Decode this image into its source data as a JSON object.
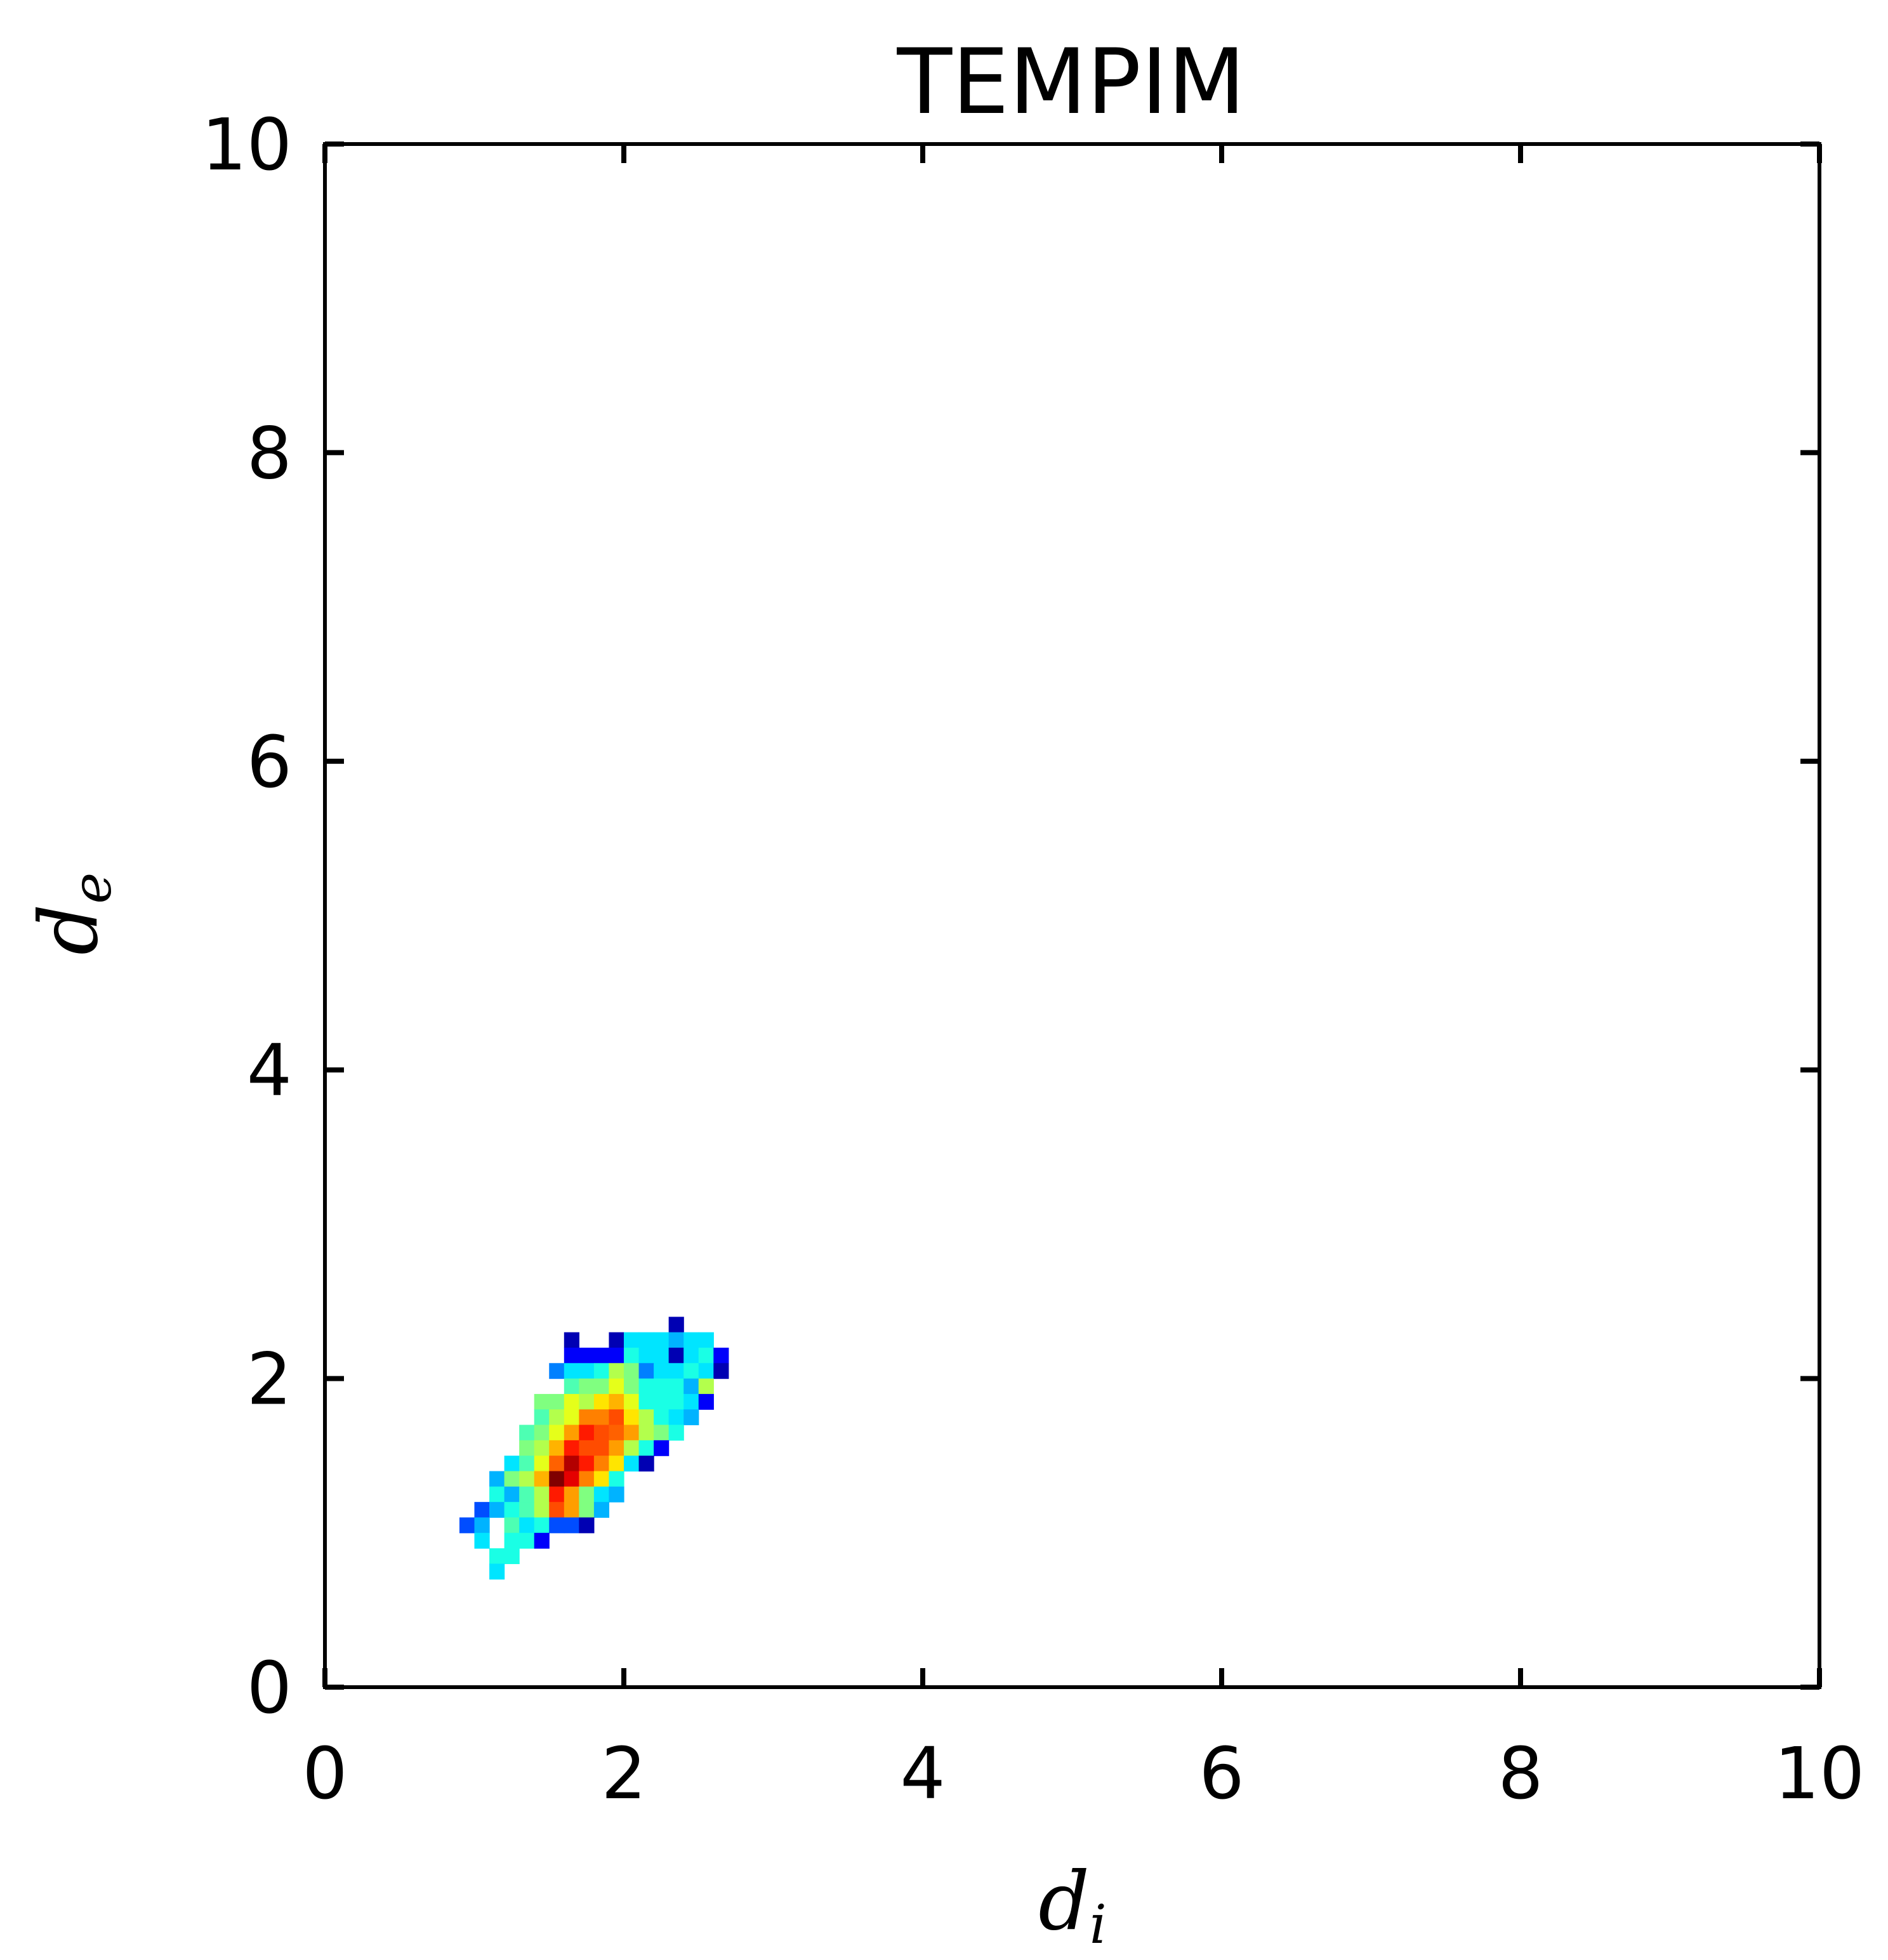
{
  "chart_data": {
    "type": "heatmap",
    "title": "TEMPIM",
    "xlabel": "d",
    "xlabel_sub": "i",
    "ylabel": "d",
    "ylabel_sub": "e",
    "xlim": [
      0,
      10
    ],
    "ylim": [
      0,
      10
    ],
    "xticks": [
      "0",
      "2",
      "4",
      "6",
      "8",
      "10"
    ],
    "yticks": [
      "0",
      "2",
      "4",
      "6",
      "8",
      "10"
    ],
    "xtick_values": [
      0,
      2,
      4,
      6,
      8,
      10
    ],
    "ytick_values": [
      0,
      2,
      4,
      6,
      8,
      10
    ],
    "grid": false,
    "legend": "none",
    "colormap": "jet",
    "bin_width": 0.1,
    "bin_height": 0.1,
    "cells": [
      [
        2.3,
        2.3,
        0.05
      ],
      [
        1.6,
        2.2,
        0.05
      ],
      [
        1.9,
        2.2,
        0.05
      ],
      [
        2.0,
        2.2,
        0.35
      ],
      [
        2.1,
        2.2,
        0.35
      ],
      [
        2.2,
        2.2,
        0.35
      ],
      [
        2.3,
        2.2,
        0.3
      ],
      [
        2.4,
        2.2,
        0.35
      ],
      [
        2.5,
        2.2,
        0.35
      ],
      [
        1.6,
        2.1,
        0.12
      ],
      [
        1.7,
        2.1,
        0.12
      ],
      [
        1.8,
        2.1,
        0.12
      ],
      [
        1.9,
        2.1,
        0.12
      ],
      [
        2.0,
        2.1,
        0.4
      ],
      [
        2.1,
        2.1,
        0.35
      ],
      [
        2.2,
        2.1,
        0.35
      ],
      [
        2.3,
        2.1,
        0.05
      ],
      [
        2.4,
        2.1,
        0.35
      ],
      [
        2.5,
        2.1,
        0.4
      ],
      [
        2.6,
        2.1,
        0.12
      ],
      [
        1.5,
        2.0,
        0.25
      ],
      [
        1.6,
        2.0,
        0.35
      ],
      [
        1.7,
        2.0,
        0.35
      ],
      [
        1.8,
        2.0,
        0.4
      ],
      [
        1.9,
        2.0,
        0.55
      ],
      [
        2.0,
        2.0,
        0.5
      ],
      [
        2.1,
        2.0,
        0.25
      ],
      [
        2.2,
        2.0,
        0.35
      ],
      [
        2.3,
        2.0,
        0.35
      ],
      [
        2.4,
        2.0,
        0.4
      ],
      [
        2.5,
        2.0,
        0.35
      ],
      [
        2.6,
        2.0,
        0.05
      ],
      [
        1.6,
        1.9,
        0.45
      ],
      [
        1.7,
        1.9,
        0.5
      ],
      [
        1.8,
        1.9,
        0.5
      ],
      [
        1.9,
        1.9,
        0.6
      ],
      [
        2.0,
        1.9,
        0.5
      ],
      [
        2.1,
        1.9,
        0.4
      ],
      [
        2.2,
        1.9,
        0.4
      ],
      [
        2.3,
        1.9,
        0.4
      ],
      [
        2.4,
        1.9,
        0.3
      ],
      [
        2.5,
        1.9,
        0.55
      ],
      [
        1.4,
        1.8,
        0.5
      ],
      [
        1.5,
        1.8,
        0.5
      ],
      [
        1.6,
        1.8,
        0.6
      ],
      [
        1.7,
        1.8,
        0.55
      ],
      [
        1.8,
        1.8,
        0.65
      ],
      [
        1.9,
        1.8,
        0.7
      ],
      [
        2.0,
        1.8,
        0.6
      ],
      [
        2.1,
        1.8,
        0.4
      ],
      [
        2.2,
        1.8,
        0.4
      ],
      [
        2.3,
        1.8,
        0.4
      ],
      [
        2.4,
        1.8,
        0.35
      ],
      [
        2.5,
        1.8,
        0.12
      ],
      [
        1.4,
        1.7,
        0.45
      ],
      [
        1.5,
        1.7,
        0.55
      ],
      [
        1.6,
        1.7,
        0.6
      ],
      [
        1.7,
        1.7,
        0.75
      ],
      [
        1.8,
        1.7,
        0.75
      ],
      [
        1.9,
        1.7,
        0.8
      ],
      [
        2.0,
        1.7,
        0.65
      ],
      [
        2.1,
        1.7,
        0.55
      ],
      [
        2.2,
        1.7,
        0.4
      ],
      [
        2.3,
        1.7,
        0.35
      ],
      [
        2.4,
        1.7,
        0.3
      ],
      [
        1.3,
        1.6,
        0.45
      ],
      [
        1.4,
        1.6,
        0.5
      ],
      [
        1.5,
        1.6,
        0.6
      ],
      [
        1.6,
        1.6,
        0.72
      ],
      [
        1.7,
        1.6,
        0.85
      ],
      [
        1.8,
        1.6,
        0.8
      ],
      [
        1.9,
        1.6,
        0.78
      ],
      [
        2.0,
        1.6,
        0.72
      ],
      [
        2.1,
        1.6,
        0.55
      ],
      [
        2.2,
        1.6,
        0.5
      ],
      [
        2.3,
        1.6,
        0.4
      ],
      [
        1.3,
        1.5,
        0.5
      ],
      [
        1.4,
        1.5,
        0.55
      ],
      [
        1.5,
        1.5,
        0.7
      ],
      [
        1.6,
        1.5,
        0.85
      ],
      [
        1.7,
        1.5,
        0.8
      ],
      [
        1.8,
        1.5,
        0.8
      ],
      [
        1.9,
        1.5,
        0.72
      ],
      [
        2.0,
        1.5,
        0.55
      ],
      [
        2.1,
        1.5,
        0.4
      ],
      [
        2.2,
        1.5,
        0.12
      ],
      [
        1.2,
        1.4,
        0.35
      ],
      [
        1.3,
        1.4,
        0.45
      ],
      [
        1.4,
        1.4,
        0.6
      ],
      [
        1.5,
        1.4,
        0.78
      ],
      [
        1.6,
        1.4,
        0.95
      ],
      [
        1.7,
        1.4,
        0.85
      ],
      [
        1.8,
        1.4,
        0.75
      ],
      [
        1.9,
        1.4,
        0.65
      ],
      [
        2.0,
        1.4,
        0.35
      ],
      [
        2.1,
        1.4,
        0.05
      ],
      [
        1.1,
        1.3,
        0.3
      ],
      [
        1.2,
        1.3,
        0.5
      ],
      [
        1.3,
        1.3,
        0.55
      ],
      [
        1.4,
        1.3,
        0.7
      ],
      [
        1.5,
        1.3,
        1.0
      ],
      [
        1.6,
        1.3,
        0.9
      ],
      [
        1.7,
        1.3,
        0.75
      ],
      [
        1.8,
        1.3,
        0.65
      ],
      [
        1.9,
        1.3,
        0.4
      ],
      [
        1.1,
        1.2,
        0.4
      ],
      [
        1.2,
        1.2,
        0.3
      ],
      [
        1.3,
        1.2,
        0.45
      ],
      [
        1.4,
        1.2,
        0.55
      ],
      [
        1.5,
        1.2,
        0.85
      ],
      [
        1.6,
        1.2,
        0.72
      ],
      [
        1.7,
        1.2,
        0.5
      ],
      [
        1.8,
        1.2,
        0.35
      ],
      [
        1.9,
        1.2,
        0.3
      ],
      [
        1.0,
        1.1,
        0.2
      ],
      [
        1.1,
        1.1,
        0.3
      ],
      [
        1.2,
        1.1,
        0.4
      ],
      [
        1.3,
        1.1,
        0.45
      ],
      [
        1.4,
        1.1,
        0.55
      ],
      [
        1.5,
        1.1,
        0.8
      ],
      [
        1.6,
        1.1,
        0.72
      ],
      [
        1.7,
        1.1,
        0.5
      ],
      [
        1.8,
        1.1,
        0.3
      ],
      [
        0.9,
        1.0,
        0.2
      ],
      [
        1.0,
        1.0,
        0.3
      ],
      [
        1.2,
        1.0,
        0.45
      ],
      [
        1.3,
        1.0,
        0.35
      ],
      [
        1.4,
        1.0,
        0.4
      ],
      [
        1.5,
        1.0,
        0.2
      ],
      [
        1.6,
        1.0,
        0.2
      ],
      [
        1.7,
        1.0,
        0.05
      ],
      [
        1.0,
        0.9,
        0.35
      ],
      [
        1.2,
        0.9,
        0.4
      ],
      [
        1.3,
        0.9,
        0.4
      ],
      [
        1.4,
        0.9,
        0.12
      ],
      [
        1.1,
        0.8,
        0.4
      ],
      [
        1.2,
        0.8,
        0.4
      ],
      [
        1.1,
        0.7,
        0.35
      ]
    ]
  }
}
